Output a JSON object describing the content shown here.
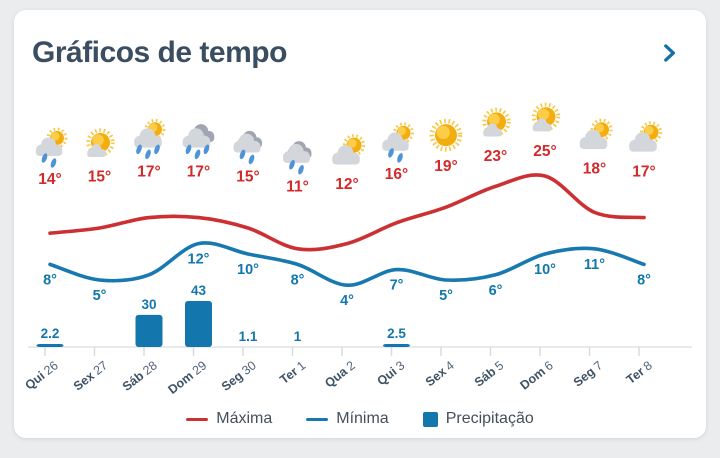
{
  "card": {
    "title": "Gráficos de tempo",
    "chevron_icon": "chevron-right"
  },
  "colors": {
    "page_bg": "#ebeced",
    "card_bg": "#ffffff",
    "title": "#3b4e61",
    "chevron": "#1470ab",
    "max_line": "#cc3033",
    "max_label": "#d22a2a",
    "min_line": "#1878b0",
    "min_label": "#1377ad",
    "bar": "#1377ad",
    "axis_line": "#e3e4e6",
    "tick": "#d9dadc",
    "day_label": "#3f5366",
    "date_label": "#51637a",
    "legend_text": "#42505c",
    "sun": "#f4ad0e",
    "sun_halo": "#f8c843",
    "cloud_light": "#d3d6db",
    "cloud_highlight": "#e9ebee",
    "cloud_dark": "#9fa6b0",
    "rain": "#4f93d8"
  },
  "chart_data": {
    "type": "line+bar",
    "categories": [
      "Qui 26",
      "Sex 27",
      "Sáb 28",
      "Dom 29",
      "Seg 30",
      "Ter 1",
      "Qua 2",
      "Qui 3",
      "Sex 4",
      "Sáb 5",
      "Dom 6",
      "Seg 7",
      "Ter 8"
    ],
    "series": [
      {
        "name": "Máxima",
        "type": "line",
        "color": "#cc3033",
        "values": [
          14,
          15,
          17,
          17,
          15,
          11,
          12,
          16,
          19,
          23,
          25,
          18,
          17
        ]
      },
      {
        "name": "Mínima",
        "type": "line",
        "color": "#1878b0",
        "values": [
          8,
          5,
          6,
          12,
          10,
          8,
          4,
          7,
          5,
          6,
          10,
          11,
          8
        ]
      },
      {
        "name": "Precipitação",
        "type": "bar",
        "color": "#1377ad",
        "values": [
          2.2,
          0,
          30,
          43,
          1.1,
          1,
          0,
          2.5,
          0,
          0,
          0,
          0,
          0
        ]
      }
    ],
    "days": [
      {
        "day": "Qui",
        "date": "26",
        "icon": "sun-cloud-rain",
        "max": 14,
        "min": 8,
        "min_label_shown": true,
        "precip_label": "2.2"
      },
      {
        "day": "Sex",
        "date": "27",
        "icon": "mostly-sunny",
        "max": 15,
        "min": 5,
        "min_label_shown": true,
        "precip_label": ""
      },
      {
        "day": "Sáb",
        "date": "28",
        "icon": "sun-cloud-rain-heavy",
        "max": 17,
        "min": 6,
        "min_label_shown": false,
        "precip_label": "30"
      },
      {
        "day": "Dom",
        "date": "29",
        "icon": "cloud-rain-heavy",
        "max": 17,
        "min": 12,
        "min_label_shown": true,
        "precip_label": "43"
      },
      {
        "day": "Seg",
        "date": "30",
        "icon": "cloud-rain",
        "max": 15,
        "min": 10,
        "min_label_shown": true,
        "precip_label": "1.1"
      },
      {
        "day": "Ter",
        "date": "1",
        "icon": "cloud-rain",
        "max": 11,
        "min": 8,
        "min_label_shown": true,
        "precip_label": "1"
      },
      {
        "day": "Qua",
        "date": "2",
        "icon": "sun-cloud",
        "max": 12,
        "min": 4,
        "min_label_shown": true,
        "precip_label": ""
      },
      {
        "day": "Qui",
        "date": "3",
        "icon": "sun-cloud-rain",
        "max": 16,
        "min": 7,
        "min_label_shown": true,
        "precip_label": "2.5"
      },
      {
        "day": "Sex",
        "date": "4",
        "icon": "sunny",
        "max": 19,
        "min": 5,
        "min_label_shown": true,
        "precip_label": ""
      },
      {
        "day": "Sáb",
        "date": "5",
        "icon": "mostly-sunny",
        "max": 23,
        "min": 6,
        "min_label_shown": true,
        "precip_label": ""
      },
      {
        "day": "Dom",
        "date": "6",
        "icon": "mostly-sunny",
        "max": 25,
        "min": 10,
        "min_label_shown": true,
        "precip_label": ""
      },
      {
        "day": "Seg",
        "date": "7",
        "icon": "sun-cloud",
        "max": 18,
        "min": 11,
        "min_label_shown": true,
        "precip_label": ""
      },
      {
        "day": "Ter",
        "date": "8",
        "icon": "sun-cloud",
        "max": 17,
        "min": 8,
        "min_label_shown": true,
        "precip_label": ""
      }
    ],
    "legend": [
      {
        "label": "Máxima",
        "swatch": "line",
        "color": "#cc3033"
      },
      {
        "label": "Mínima",
        "swatch": "line",
        "color": "#1878b0"
      },
      {
        "label": "Precipitação",
        "swatch": "square",
        "color": "#1377ad"
      }
    ],
    "legend_position": "bottom",
    "grid": false,
    "xlabel": "",
    "ylabel": ""
  }
}
